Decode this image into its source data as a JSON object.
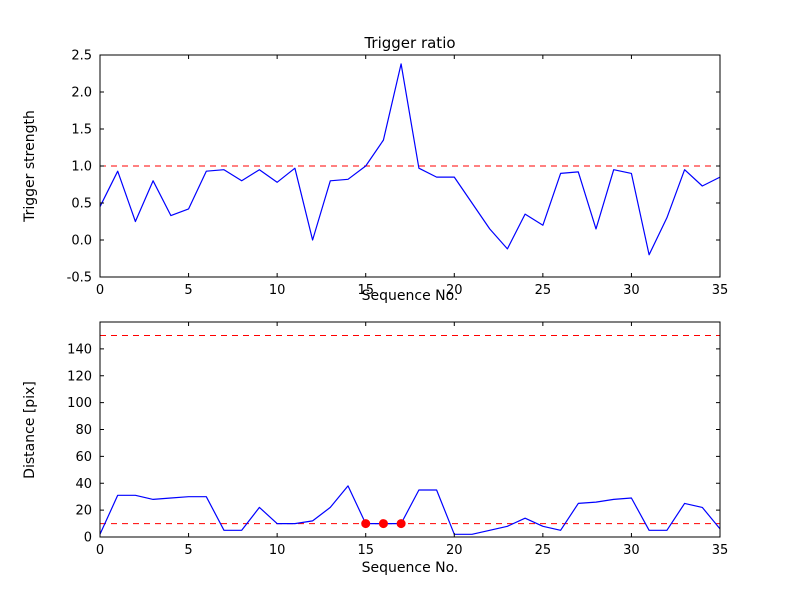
{
  "figure": {
    "background": "#ffffff"
  },
  "chart_data": [
    {
      "type": "line",
      "title": "Trigger ratio",
      "xlabel": "Sequence No.",
      "ylabel": "Trigger strength",
      "xlim": [
        0,
        35
      ],
      "ylim": [
        -0.5,
        2.5
      ],
      "xtick_values": [
        0,
        5,
        10,
        15,
        20,
        25,
        30,
        35
      ],
      "xtick_labels": [
        "0",
        "5",
        "10",
        "15",
        "20",
        "25",
        "30",
        "35"
      ],
      "ytick_values": [
        -0.5,
        0.0,
        0.5,
        1.0,
        1.5,
        2.0,
        2.5
      ],
      "ytick_labels": [
        "-0.5",
        "0.0",
        "0.5",
        "1.0",
        "1.5",
        "2.0",
        "2.5"
      ],
      "line_color": "#0000ff",
      "x": [
        0,
        1,
        2,
        3,
        4,
        5,
        6,
        7,
        8,
        9,
        10,
        11,
        12,
        13,
        14,
        15,
        16,
        17,
        18,
        19,
        20,
        21,
        22,
        23,
        24,
        25,
        26,
        27,
        28,
        29,
        30,
        31,
        32,
        33,
        34,
        35
      ],
      "y": [
        0.45,
        0.93,
        0.25,
        0.8,
        0.33,
        0.42,
        0.93,
        0.95,
        0.8,
        0.95,
        0.78,
        0.97,
        0.0,
        0.8,
        0.82,
        1.0,
        1.35,
        2.38,
        0.97,
        0.85,
        0.85,
        0.5,
        0.15,
        -0.12,
        0.35,
        0.2,
        0.9,
        0.92,
        0.15,
        0.95,
        0.9,
        -0.2,
        0.3,
        0.95,
        0.73,
        0.85
      ],
      "hlines": [
        {
          "y": 1.0,
          "color": "#ff0000",
          "dash": true
        }
      ],
      "legend": "none",
      "grid": false
    },
    {
      "type": "line",
      "title": "",
      "xlabel": "Sequence No.",
      "ylabel": "Distance [pix]",
      "xlim": [
        0,
        35
      ],
      "ylim": [
        0,
        160
      ],
      "xtick_values": [
        0,
        5,
        10,
        15,
        20,
        25,
        30,
        35
      ],
      "xtick_labels": [
        "0",
        "5",
        "10",
        "15",
        "20",
        "25",
        "30",
        "35"
      ],
      "ytick_values": [
        0,
        20,
        40,
        60,
        80,
        100,
        120,
        140
      ],
      "ytick_labels": [
        "0",
        "20",
        "40",
        "60",
        "80",
        "100",
        "120",
        "140"
      ],
      "line_color": "#0000ff",
      "x": [
        0,
        1,
        2,
        3,
        4,
        5,
        6,
        7,
        8,
        9,
        10,
        11,
        12,
        13,
        14,
        15,
        16,
        17,
        18,
        19,
        20,
        21,
        22,
        23,
        24,
        25,
        26,
        27,
        28,
        29,
        30,
        31,
        32,
        33,
        34,
        35
      ],
      "y": [
        2,
        31,
        31,
        28,
        29,
        30,
        30,
        5,
        5,
        22,
        10,
        10,
        12,
        22,
        38,
        10,
        10,
        10,
        35,
        35,
        2,
        2,
        5,
        8,
        14,
        8,
        5,
        25,
        26,
        28,
        29,
        5,
        5,
        25,
        22,
        6
      ],
      "hlines": [
        {
          "y": 150,
          "color": "#ff0000",
          "dash": true
        },
        {
          "y": 10,
          "color": "#ff0000",
          "dash": true
        }
      ],
      "markers": {
        "x": [
          15,
          16,
          17
        ],
        "y": [
          10,
          10,
          10
        ],
        "color": "#ff0000"
      },
      "legend": "none",
      "grid": false
    }
  ]
}
